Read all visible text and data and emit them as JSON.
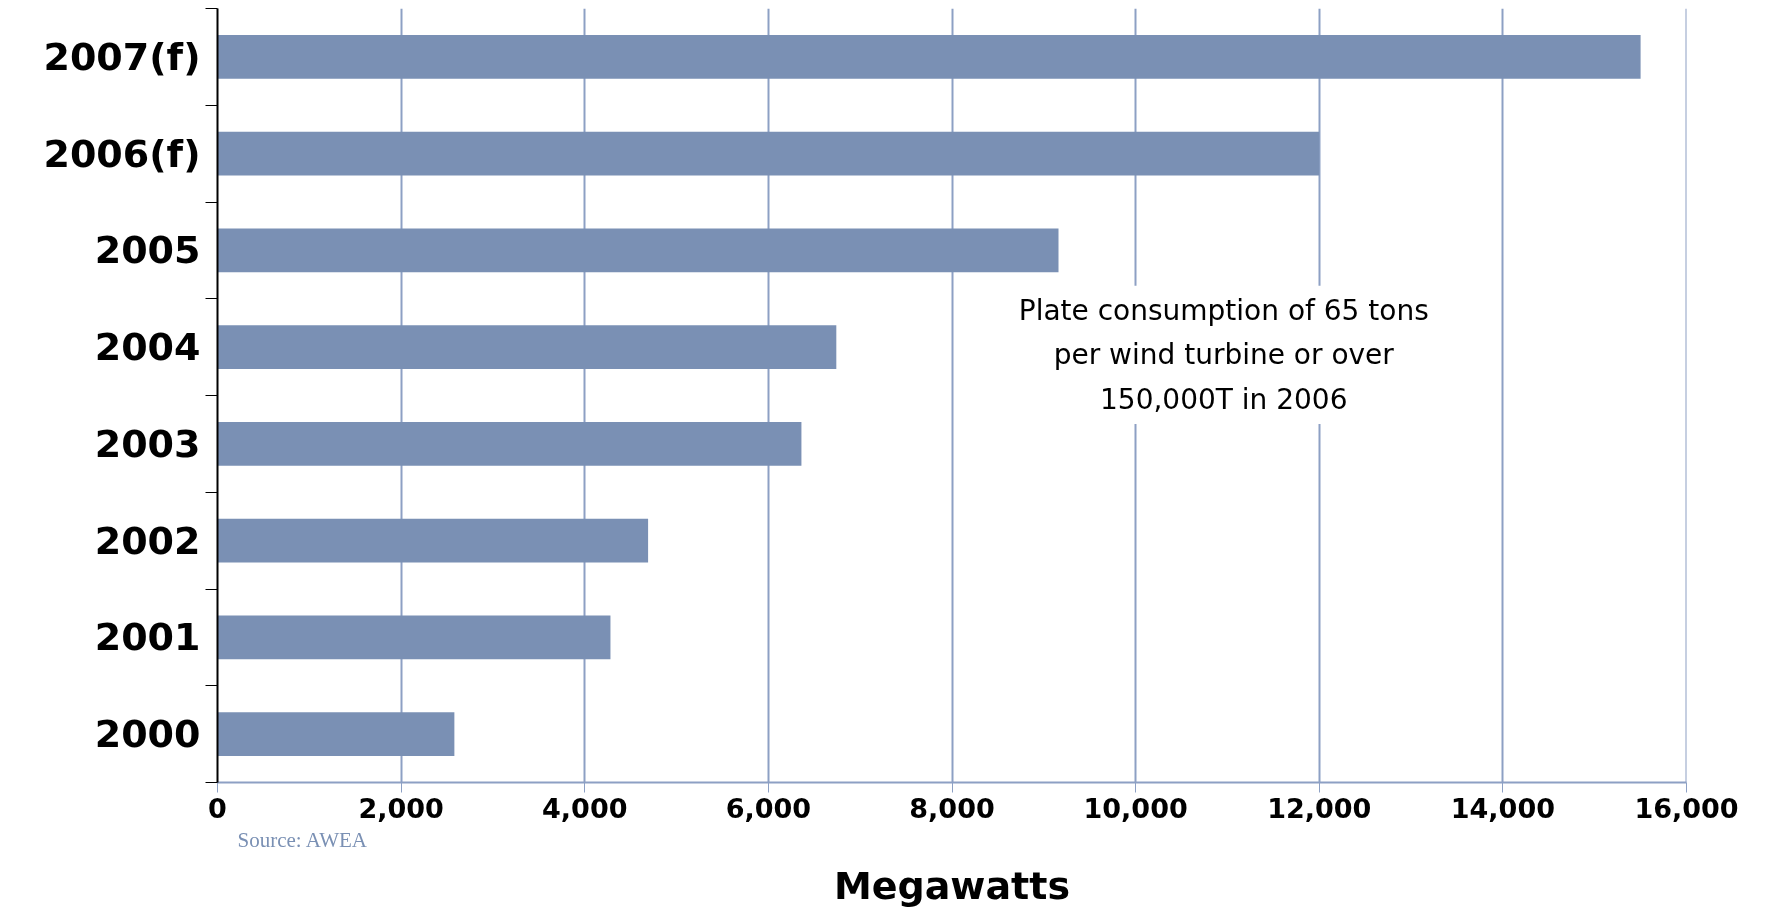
{
  "chart_data": {
    "type": "bar",
    "orientation": "horizontal",
    "categories": [
      "2007(f)",
      "2006(f)",
      "2005",
      "2004",
      "2003",
      "2002",
      "2001",
      "2000"
    ],
    "values": [
      15500,
      12000,
      9160,
      6740,
      6360,
      4690,
      4280,
      2580
    ],
    "color": "#7a90b4",
    "xlabel": "Megawatts",
    "xlim": [
      0,
      16000
    ],
    "xticks": [
      {
        "value": 0,
        "label": "0"
      },
      {
        "value": 2000,
        "label": "2,000"
      },
      {
        "value": 4000,
        "label": "4,000"
      },
      {
        "value": 6000,
        "label": "6,000"
      },
      {
        "value": 8000,
        "label": "8,000"
      },
      {
        "value": 10000,
        "label": "10,000"
      },
      {
        "value": 12000,
        "label": "12,000"
      },
      {
        "value": 14000,
        "label": "14,000"
      },
      {
        "value": 16000,
        "label": "16,000"
      }
    ],
    "grid": "x",
    "annotations": [
      "Plate consumption of 65 tons\nper wind turbine or over\n150,000T in 2006",
      "Source: AWEA"
    ]
  }
}
